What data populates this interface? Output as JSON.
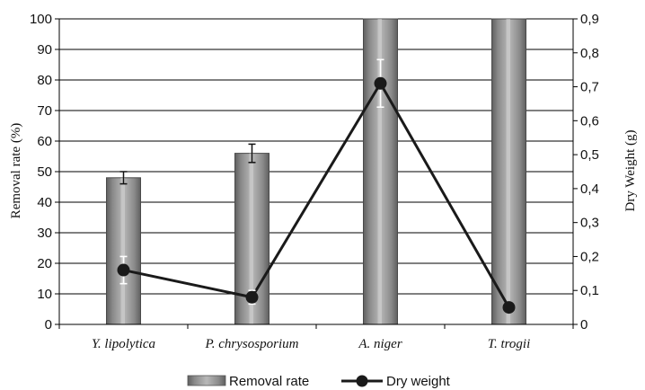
{
  "chart_data": {
    "type": "bar+line",
    "categories": [
      "Y. lipolytica",
      "P. chrysosporium",
      "A. niger",
      "T. trogii"
    ],
    "y_left": {
      "label": "Removal rate (%)",
      "lim": [
        0,
        100
      ],
      "ticks": [
        "0",
        "10",
        "20",
        "30",
        "40",
        "50",
        "60",
        "70",
        "80",
        "90",
        "100"
      ]
    },
    "y_right": {
      "label": "Dry Weight (g)",
      "lim": [
        0,
        0.9
      ],
      "ticks": [
        "0",
        "0,1",
        "0,2",
        "0,3",
        "0,4",
        "0,5",
        "0,6",
        "0,7",
        "0,8",
        "0,9"
      ]
    },
    "series": [
      {
        "name": "Removal rate",
        "kind": "bar",
        "axis": "left",
        "values": [
          48,
          56,
          100,
          100
        ],
        "error": [
          2,
          3,
          0,
          0
        ],
        "color": "#8c8c8c"
      },
      {
        "name": "Dry weight",
        "kind": "line",
        "axis": "right",
        "values": [
          0.16,
          0.08,
          0.71,
          0.05
        ],
        "error": [
          0.04,
          0.02,
          0.07,
          0
        ],
        "color": "#1a1a1a"
      }
    ],
    "grid": true,
    "legend_position": "bottom"
  }
}
